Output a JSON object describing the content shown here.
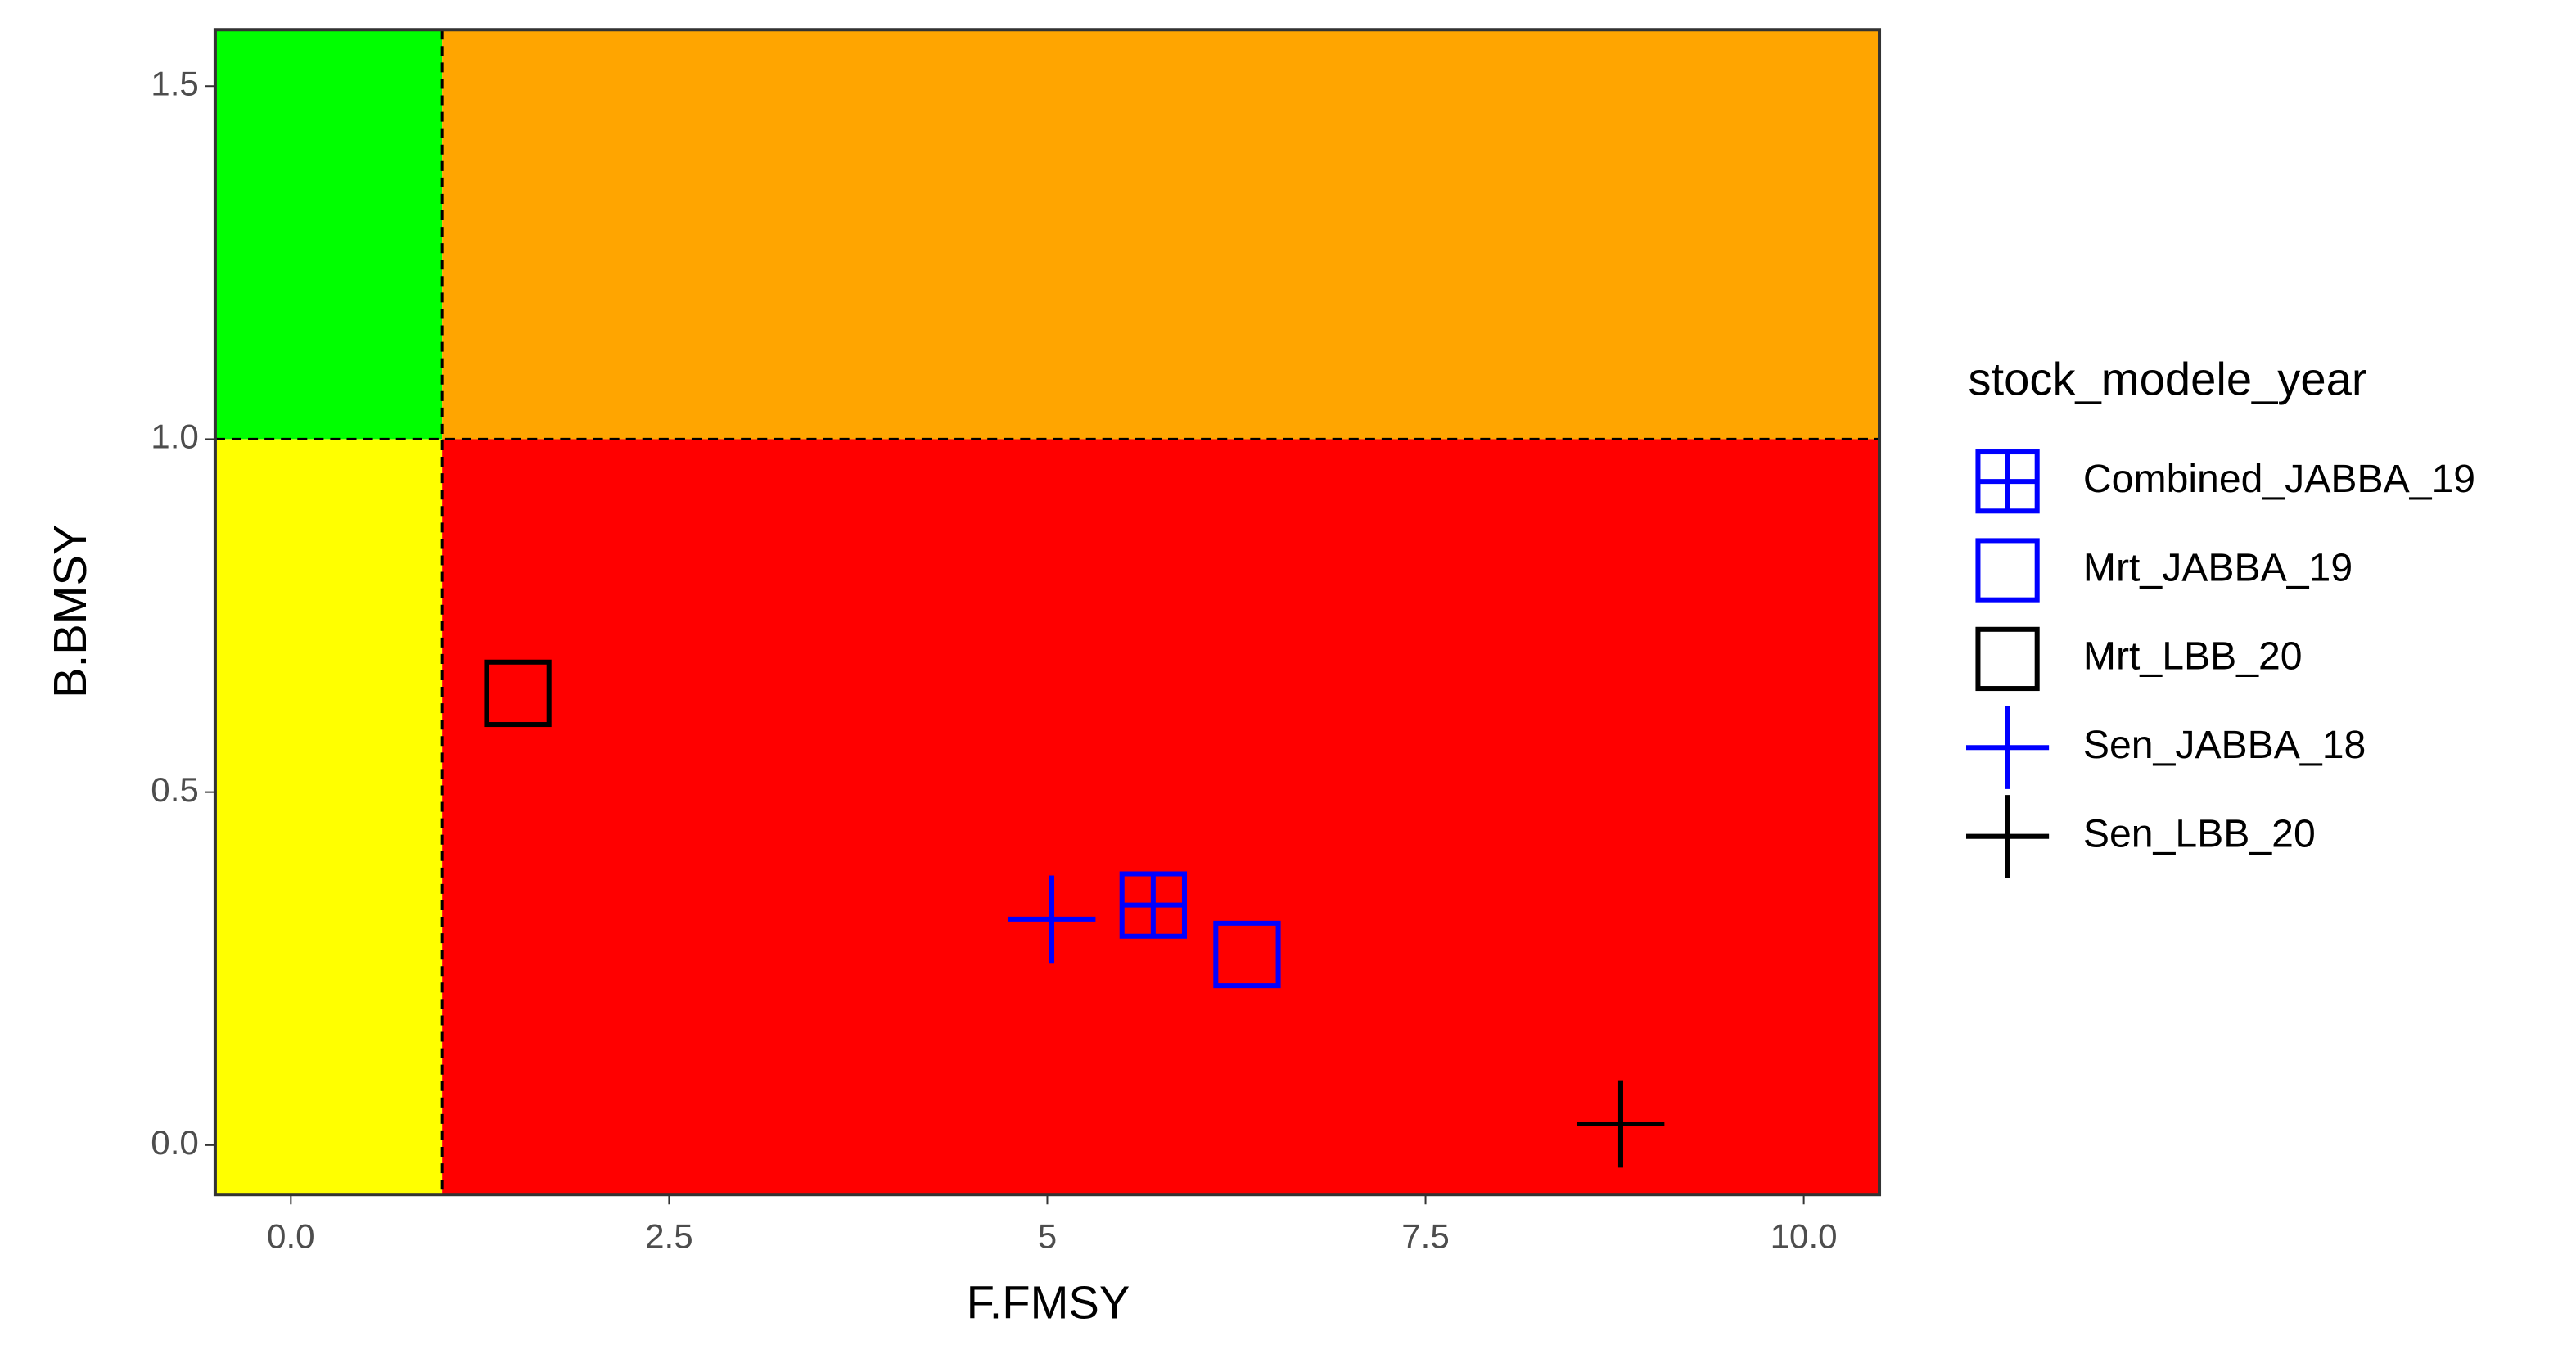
{
  "chart_data": {
    "type": "scatter",
    "x_label": "F.FMSY",
    "y_label": "B.BMSY",
    "legend_title": "stock_modele_year",
    "legend_position": "right",
    "xlim": [
      -0.5,
      10.5
    ],
    "ylim": [
      -0.07,
      1.58
    ],
    "xticks": [
      {
        "value": 0,
        "label": "0.0"
      },
      2.5,
      5,
      7.5,
      {
        "value": 10,
        "label": "10.0"
      }
    ],
    "yticks": [
      {
        "value": 0,
        "label": "0.0"
      },
      0.5,
      {
        "value": 1,
        "label": "1.0"
      },
      1.5
    ],
    "reference_x": 1,
    "reference_y": 1,
    "zone_colors": {
      "low_f_high_b": "#00ff00",
      "high_f_high_b": "#ffa500",
      "low_f_low_b": "#ffff00",
      "high_f_low_b": "#ff0000"
    },
    "series": [
      {
        "name": "Combined_JABBA_19",
        "color": "#0000ff",
        "marker": "square-grid",
        "x": [
          5.7
        ],
        "values": [
          0.34
        ]
      },
      {
        "name": "Mrt_JABBA_19",
        "color": "#0000ff",
        "marker": "square",
        "x": [
          6.32
        ],
        "values": [
          0.27
        ]
      },
      {
        "name": "Mrt_LBB_20",
        "color": "#000000",
        "marker": "square",
        "x": [
          1.5
        ],
        "values": [
          0.64
        ]
      },
      {
        "name": "Sen_JABBA_18",
        "color": "#0000ff",
        "marker": "plus",
        "x": [
          5.03
        ],
        "values": [
          0.32
        ]
      },
      {
        "name": "Sen_LBB_20",
        "color": "#000000",
        "marker": "plus",
        "x": [
          8.79
        ],
        "values": [
          0.03
        ]
      }
    ]
  }
}
